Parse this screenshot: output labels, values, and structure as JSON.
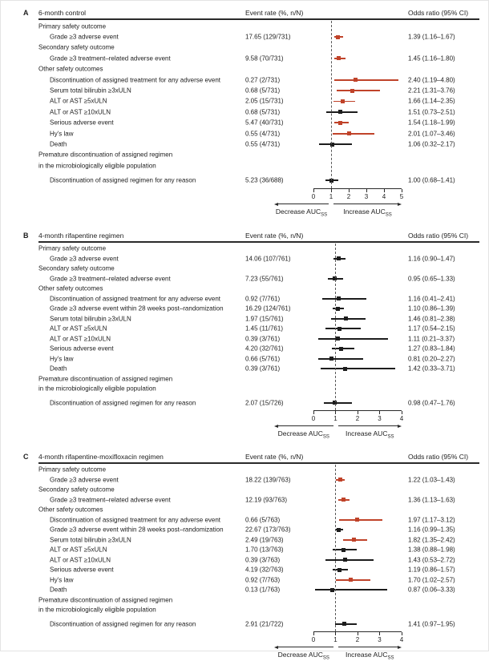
{
  "colors": {
    "red": "#c0432a",
    "black": "#1d1d1d"
  },
  "axis_labels": {
    "decrease": "Decrease AUC",
    "increase": "Increase AUC",
    "subscript": "SS"
  },
  "chart_data": [
    {
      "type": "scatter",
      "subtype": "forest",
      "letter": "A",
      "title": "6-month control",
      "event_rate_header": "Event rate (%, n/N)",
      "or_header": "Odds ratio (95% CI)",
      "xlim": [
        0,
        5
      ],
      "ticks": [
        0,
        1,
        2,
        3,
        4,
        5
      ],
      "reference_line": 1,
      "rows": [
        {
          "type": "section",
          "label": "Primary safety outcome"
        },
        {
          "type": "item",
          "label": "Grade ≥3 adverse event",
          "rate": "17.65 (129/731)",
          "or_text": "1.39 (1.16–1.67)",
          "or": 1.39,
          "lo": 1.16,
          "hi": 1.67,
          "color": "red"
        },
        {
          "type": "section",
          "label": "Secondary safety outcome"
        },
        {
          "type": "item",
          "label": "Grade ≥3 treatment–related adverse event",
          "rate": "9.58 (70/731)",
          "or_text": "1.45 (1.16–1.80)",
          "or": 1.45,
          "lo": 1.16,
          "hi": 1.8,
          "color": "red"
        },
        {
          "type": "section",
          "label": "Other safety outcomes"
        },
        {
          "type": "item",
          "label": "Discontinuation of assigned treatment for any adverse event",
          "rate": "0.27 (2/731)",
          "or_text": "2.40 (1.19–4.80)",
          "or": 2.4,
          "lo": 1.19,
          "hi": 4.8,
          "color": "red"
        },
        {
          "type": "item",
          "label": "Serum total bilirubin ≥3xULN",
          "rate": "0.68 (5/731)",
          "or_text": "2.21 (1.31–3.76)",
          "or": 2.21,
          "lo": 1.31,
          "hi": 3.76,
          "color": "red"
        },
        {
          "type": "item",
          "label": "ALT or AST ≥5xULN",
          "rate": "2.05 (15/731)",
          "or_text": "1.66 (1.14–2.35)",
          "or": 1.66,
          "lo": 1.14,
          "hi": 2.35,
          "color": "red"
        },
        {
          "type": "item",
          "label": "ALT or AST ≥10xULN",
          "rate": "0.68 (5/731)",
          "or_text": "1.51 (0.73–2.51)",
          "or": 1.51,
          "lo": 0.73,
          "hi": 2.51,
          "color": "black"
        },
        {
          "type": "item",
          "label": "Serious adverse event",
          "rate": "5.47 (40/731)",
          "or_text": "1.54 (1.18–1.99)",
          "or": 1.54,
          "lo": 1.18,
          "hi": 1.99,
          "color": "red"
        },
        {
          "type": "item",
          "label": "Hy's law",
          "rate": "0.55 (4/731)",
          "or_text": "2.01 (1.07–3.46)",
          "or": 2.01,
          "lo": 1.07,
          "hi": 3.46,
          "color": "red"
        },
        {
          "type": "item",
          "label": "Death",
          "rate": "0.55 (4/731)",
          "or_text": "1.06 (0.32–2.17)",
          "or": 1.06,
          "lo": 0.32,
          "hi": 2.17,
          "color": "black"
        },
        {
          "type": "section",
          "label": "Premature discontinuation of assigned regimen"
        },
        {
          "type": "section",
          "label": "in the microbiologically eligible population"
        },
        {
          "type": "item",
          "pre_gap": true,
          "label": "Discontinuation of assigned regimen for any reason",
          "rate": "5.23 (36/688)",
          "or_text": "1.00 (0.68–1.41)",
          "or": 1.0,
          "lo": 0.68,
          "hi": 1.41,
          "color": "black"
        }
      ]
    },
    {
      "type": "scatter",
      "subtype": "forest",
      "letter": "B",
      "title": "4-month rifapentine regimen",
      "event_rate_header": "Event rate (%, n/N)",
      "or_header": "Odds ratio (95% CI)",
      "xlim": [
        0,
        4
      ],
      "ticks": [
        0,
        1,
        2,
        3,
        4
      ],
      "reference_line": 1,
      "rows": [
        {
          "type": "section",
          "label": "Primary safety outcome"
        },
        {
          "type": "item",
          "label": "Grade ≥3 adverse event",
          "rate": "14.06 (107/761)",
          "or_text": "1.16 (0.90–1.47)",
          "or": 1.16,
          "lo": 0.9,
          "hi": 1.47,
          "color": "black"
        },
        {
          "type": "section",
          "label": "Secondary safety outcome"
        },
        {
          "type": "item",
          "label": "Grade ≥3 treatment–related adverse event",
          "rate": "7.23 (55/761)",
          "or_text": "0.95 (0.65–1.33)",
          "or": 0.95,
          "lo": 0.65,
          "hi": 1.33,
          "color": "black"
        },
        {
          "type": "section",
          "label": "Other safety outcomes"
        },
        {
          "type": "item",
          "label": "Discontinuation of assigned treatment for any adverse event",
          "rate": "0.92 (7/761)",
          "or_text": "1.16 (0.41–2.41)",
          "or": 1.16,
          "lo": 0.41,
          "hi": 2.41,
          "color": "black"
        },
        {
          "type": "item",
          "label": "Grade ≥3 adverse event within 28 weeks post–randomization",
          "rate": "16.29 (124/761)",
          "or_text": "1.10 (0.86–1.39)",
          "or": 1.1,
          "lo": 0.86,
          "hi": 1.39,
          "color": "black"
        },
        {
          "type": "item",
          "label": "Serum total bilirubin ≥3xULN",
          "rate": "1.97 (15/761)",
          "or_text": "1.46 (0.81–2.38)",
          "or": 1.46,
          "lo": 0.81,
          "hi": 2.38,
          "color": "black"
        },
        {
          "type": "item",
          "label": "ALT or AST ≥5xULN",
          "rate": "1.45 (11/761)",
          "or_text": "1.17 (0.54–2.15)",
          "or": 1.17,
          "lo": 0.54,
          "hi": 2.15,
          "color": "black"
        },
        {
          "type": "item",
          "label": "ALT or AST ≥10xULN",
          "rate": "0.39 (3/761)",
          "or_text": "1.11 (0.21–3.37)",
          "or": 1.11,
          "lo": 0.21,
          "hi": 3.37,
          "color": "black"
        },
        {
          "type": "item",
          "label": "Serious adverse event",
          "rate": "4.20 (32/761)",
          "or_text": "1.27 (0.83–1.84)",
          "or": 1.27,
          "lo": 0.83,
          "hi": 1.84,
          "color": "black"
        },
        {
          "type": "item",
          "label": "Hy's law",
          "rate": "0.66 (5/761)",
          "or_text": "0.81 (0.20–2.27)",
          "or": 0.81,
          "lo": 0.2,
          "hi": 2.27,
          "color": "black"
        },
        {
          "type": "item",
          "label": "Death",
          "rate": "0.39 (3/761)",
          "or_text": "1.42 (0.33–3.71)",
          "or": 1.42,
          "lo": 0.33,
          "hi": 3.71,
          "color": "black"
        },
        {
          "type": "section",
          "label": "Premature discontinuation of assigned regimen"
        },
        {
          "type": "section",
          "label": "in the microbiologically eligible population"
        },
        {
          "type": "item",
          "pre_gap": true,
          "label": "Discontinuation of assigned regimen for any reason",
          "rate": "2.07 (15/726)",
          "or_text": "0.98 (0.47–1.76)",
          "or": 0.98,
          "lo": 0.47,
          "hi": 1.76,
          "color": "black"
        }
      ]
    },
    {
      "type": "scatter",
      "subtype": "forest",
      "letter": "C",
      "title": "4-month rifapentine-moxifloxacin regimen",
      "event_rate_header": "Event rate (%, n/N)",
      "or_header": "Odds ratio (95% CI)",
      "xlim": [
        0,
        4
      ],
      "ticks": [
        0,
        1,
        2,
        3,
        4
      ],
      "reference_line": 1,
      "rows": [
        {
          "type": "section",
          "label": "Primary safety outcome"
        },
        {
          "type": "item",
          "label": "Grade ≥3 adverse event",
          "rate": "18.22 (139/763)",
          "or_text": "1.22 (1.03–1.43)",
          "or": 1.22,
          "lo": 1.03,
          "hi": 1.43,
          "color": "red"
        },
        {
          "type": "section",
          "label": "Secondary safety outcome"
        },
        {
          "type": "item",
          "label": "Grade ≥3 treatment–related adverse event",
          "rate": "12.19 (93/763)",
          "or_text": "1.36 (1.13–1.63)",
          "or": 1.36,
          "lo": 1.13,
          "hi": 1.63,
          "color": "red"
        },
        {
          "type": "section",
          "label": "Other safety outcomes"
        },
        {
          "type": "item",
          "label": "Discontinuation of assigned treatment for any adverse event",
          "rate": "0.66 (5/763)",
          "or_text": "1.97 (1.17–3.12)",
          "or": 1.97,
          "lo": 1.17,
          "hi": 3.12,
          "color": "red"
        },
        {
          "type": "item",
          "label": "Grade ≥3 adverse event within 28 weeks post–randomization",
          "rate": "22.67 (173/763)",
          "or_text": "1.16 (0.99–1.35)",
          "or": 1.16,
          "lo": 0.99,
          "hi": 1.35,
          "color": "black"
        },
        {
          "type": "item",
          "label": "Serum total bilirubin ≥3xULN",
          "rate": "2.49 (19/763)",
          "or_text": "1.82 (1.35–2.42)",
          "or": 1.82,
          "lo": 1.35,
          "hi": 2.42,
          "color": "red"
        },
        {
          "type": "item",
          "label": "ALT or AST ≥5xULN",
          "rate": "1.70 (13/763)",
          "or_text": "1.38 (0.88–1.98)",
          "or": 1.38,
          "lo": 0.88,
          "hi": 1.98,
          "color": "black"
        },
        {
          "type": "item",
          "label": "ALT or AST ≥10xULN",
          "rate": "0.39 (3/763)",
          "or_text": "1.43 (0.53–2.72)",
          "or": 1.43,
          "lo": 0.53,
          "hi": 2.72,
          "color": "black"
        },
        {
          "type": "item",
          "label": "Serious adverse event",
          "rate": "4.19 (32/763)",
          "or_text": "1.19 (0.86–1.57)",
          "or": 1.19,
          "lo": 0.86,
          "hi": 1.57,
          "color": "black"
        },
        {
          "type": "item",
          "label": "Hy's law",
          "rate": "0.92 (7/763)",
          "or_text": "1.70 (1.02–2.57)",
          "or": 1.7,
          "lo": 1.02,
          "hi": 2.57,
          "color": "red"
        },
        {
          "type": "item",
          "label": "Death",
          "rate": "0.13 (1/763)",
          "or_text": "0.87 (0.06–3.33)",
          "or": 0.87,
          "lo": 0.06,
          "hi": 3.33,
          "color": "black"
        },
        {
          "type": "section",
          "label": "Premature discontinuation of assigned regimen"
        },
        {
          "type": "section",
          "label": "in the microbiologically eligible population"
        },
        {
          "type": "item",
          "pre_gap": true,
          "label": "Discontinuation of assigned regimen for any reason",
          "rate": "2.91 (21/722)",
          "or_text": "1.41 (0.97–1.95)",
          "or": 1.41,
          "lo": 0.97,
          "hi": 1.95,
          "color": "black"
        }
      ]
    }
  ]
}
